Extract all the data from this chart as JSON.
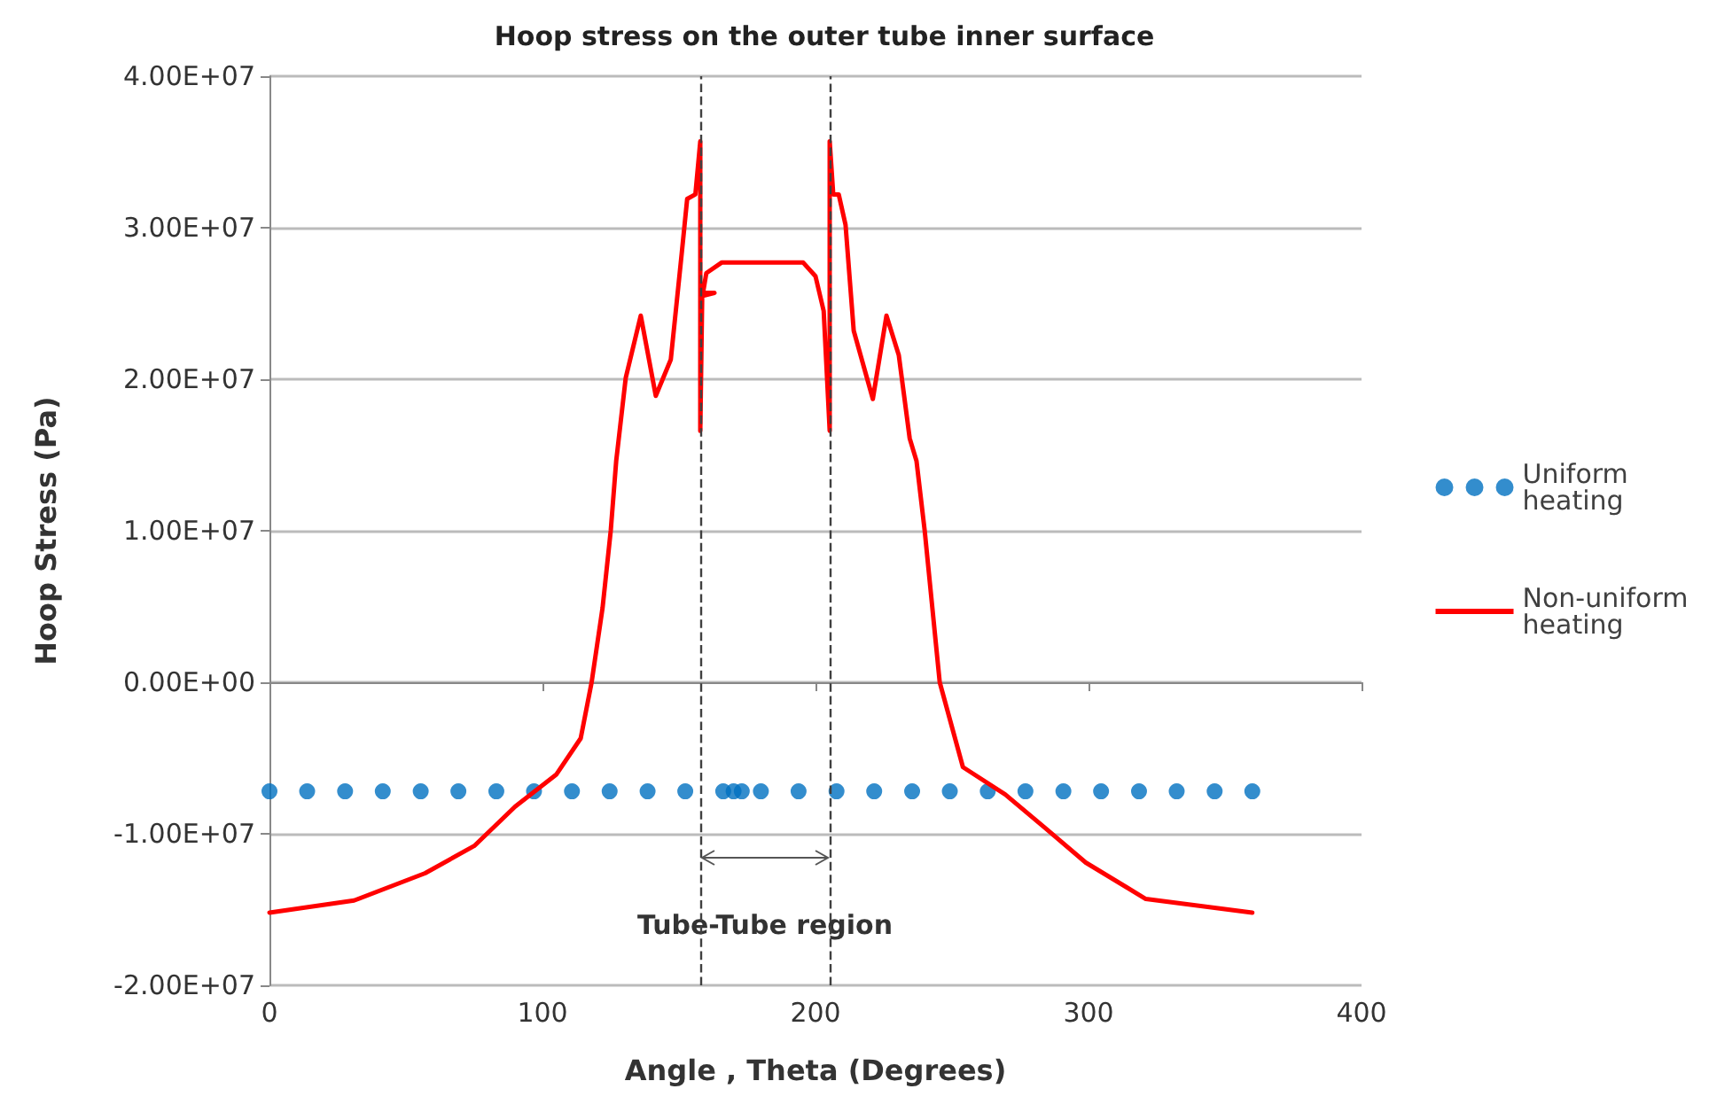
{
  "chart_data": {
    "type": "line",
    "title": "Hoop stress on the outer tube inner surface",
    "xlabel": "Angle , Theta (Degrees)",
    "ylabel": "Hoop Stress (Pa)",
    "xlim": [
      0,
      400
    ],
    "xticks": [
      0,
      100,
      200,
      300,
      400
    ],
    "ylim": [
      -20000000,
      40000000
    ],
    "yticks": [
      {
        "value": -20000000,
        "label": "-2.00E+07"
      },
      {
        "value": -10000000,
        "label": "-1.00E+07"
      },
      {
        "value": 0,
        "label": "0.00E+00"
      },
      {
        "value": 10000000,
        "label": "1.00E+07"
      },
      {
        "value": 20000000,
        "label": "2.00E+07"
      },
      {
        "value": 30000000,
        "label": "3.00E+07"
      },
      {
        "value": 40000000,
        "label": "4.00E+07"
      }
    ],
    "grid": "y",
    "legend": "right",
    "series": [
      {
        "name": "Uniform heating",
        "type": "scatter",
        "marker": "circle",
        "color": "#0070c0",
        "x": [
          0,
          13.8,
          27.7,
          41.5,
          55.4,
          69.2,
          83.1,
          96.9,
          110.8,
          124.6,
          138.5,
          152.3,
          166.2,
          170,
          173,
          180,
          193.8,
          207.7,
          221.5,
          235.4,
          249.2,
          263.1,
          276.9,
          290.8,
          304.6,
          318.5,
          332.3,
          346.2,
          360
        ],
        "values": [
          -7200000,
          -7200000,
          -7200000,
          -7200000,
          -7200000,
          -7200000,
          -7200000,
          -7200000,
          -7200000,
          -7200000,
          -7200000,
          -7200000,
          -7200000,
          -7200000,
          -7200000,
          -7200000,
          -7200000,
          -7200000,
          -7200000,
          -7200000,
          -7200000,
          -7200000,
          -7200000,
          -7200000,
          -7200000,
          -7200000,
          -7200000,
          -7200000,
          -7200000
        ]
      },
      {
        "name": "Non-uniform heating",
        "marker": "none",
        "line_style": "solid",
        "color": "#ff0000",
        "x": [
          0,
          31,
          57,
          75,
          90,
          105,
          114,
          118,
          122,
          125,
          127,
          130.5,
          136,
          141.5,
          147,
          151,
          153,
          156,
          157.8,
          157.8,
          158.5,
          163,
          158.8,
          160,
          165.6,
          181,
          195.5,
          200,
          203,
          205.2,
          205.2,
          206.5,
          208.5,
          211,
          214,
          221,
          226,
          230.5,
          234.5,
          237,
          240,
          245.5,
          254,
          269.5,
          284,
          299,
          321,
          360
        ],
        "values": [
          -15200000,
          -14400000,
          -12600000,
          -10800000,
          -8200000,
          -6100000,
          -3700000,
          0,
          4900000,
          10000000,
          14600000,
          20100000,
          24200000,
          18900000,
          21300000,
          28300000,
          31900000,
          32200000,
          35700000,
          16600000,
          25500000,
          25700000,
          25700000,
          27000000,
          27700000,
          27700000,
          27700000,
          26800000,
          24500000,
          16600000,
          35700000,
          32200000,
          32200000,
          30200000,
          23200000,
          18700000,
          24200000,
          21600000,
          16100000,
          14600000,
          10000000,
          0,
          -5600000,
          -7400000,
          -9600000,
          -11900000,
          -14300000,
          -15200000
        ]
      }
    ],
    "ref_lines": [
      {
        "axis": "x",
        "value": 157.8,
        "line_style": "dashed",
        "color": "#404040"
      },
      {
        "axis": "x",
        "value": 205.2,
        "line_style": "dashed",
        "color": "#404040"
      }
    ],
    "annotations": [
      "Tube-Tube region"
    ]
  }
}
